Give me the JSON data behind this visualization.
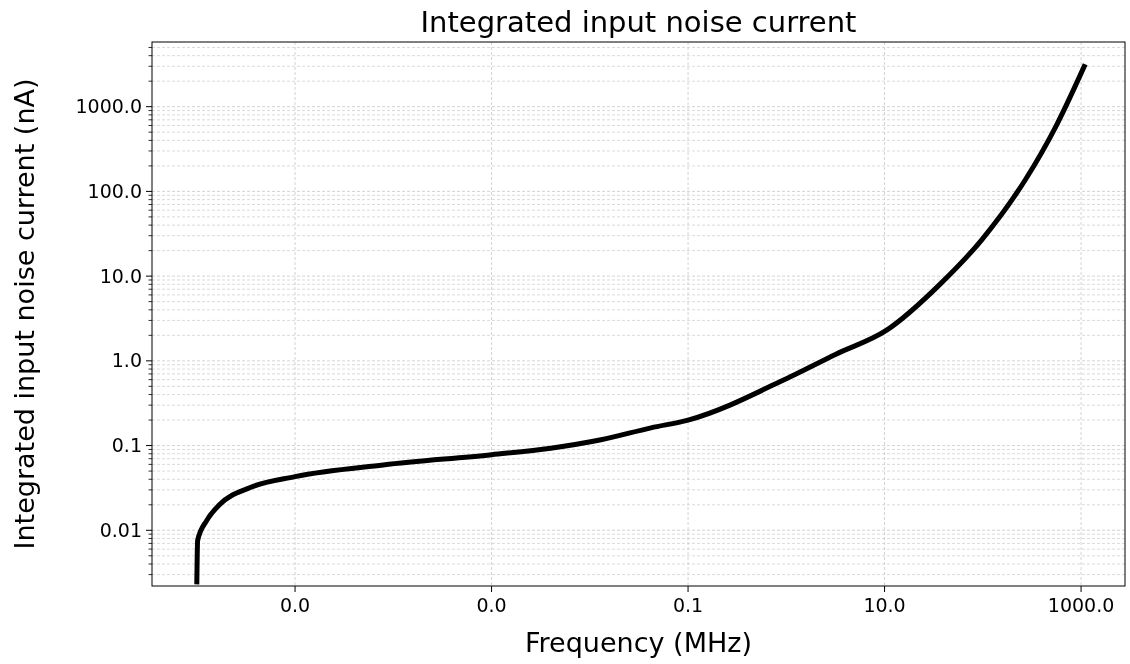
{
  "chart_data": {
    "type": "line",
    "title": "Integrated input noise current",
    "xlabel": "Frequency (MHz)",
    "ylabel": "Integrated input noise current (nA)",
    "log": "xy",
    "grid": true,
    "marker": "none",
    "line_style": "solid",
    "xlim": [
      3.5e-07,
      2800
    ],
    "ylim": [
      0.0022,
      5800
    ],
    "xticks": [
      {
        "value": 1e-05,
        "label": "0.0"
      },
      {
        "value": 0.001,
        "label": "0.0"
      },
      0.1,
      {
        "value": 10,
        "label": "10.0"
      },
      {
        "value": 1000,
        "label": "1000.0"
      }
    ],
    "yticks": [
      0.01,
      0.1,
      {
        "value": 1,
        "label": "1.0"
      },
      {
        "value": 10,
        "label": "10.0"
      },
      {
        "value": 100,
        "label": "100.0"
      },
      {
        "value": 1000,
        "label": "1000.0"
      }
    ],
    "series": [
      {
        "color": "#000000",
        "x": [
          1e-06,
          1.02e-06,
          1.26e-06,
          1.7e-06,
          3.5e-06,
          1e-05,
          7.9e-05,
          0.001,
          0.004,
          0.013,
          0.042,
          0.1,
          1.1,
          3.2,
          10.5,
          37,
          98,
          275,
          550,
          1100
        ],
        "values": [
          0.0023,
          0.0076,
          0.013,
          0.02,
          0.032,
          0.043,
          0.059,
          0.078,
          0.093,
          0.117,
          0.162,
          0.2,
          0.65,
          1.2,
          2.3,
          8.1,
          27,
          141,
          575,
          3160
        ]
      }
    ]
  }
}
